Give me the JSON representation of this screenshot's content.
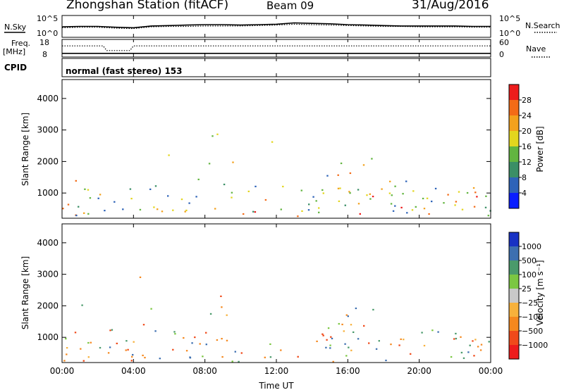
{
  "header": {
    "station": "Zhongshan Station (fitACF)",
    "beam": "Beam 09",
    "date": "31/Aug/2016"
  },
  "colors": {
    "frame": "#000000",
    "power_scale": [
      "#0a1eff",
      "#2e63b8",
      "#3b8f66",
      "#62b540",
      "#e3d61e",
      "#f3a11c",
      "#f36b17",
      "#ed1c1c"
    ],
    "velocity_scale": [
      "#ed1c1c",
      "#f04a1a",
      "#f5881e",
      "#f7b13b",
      "#c8c8c8",
      "#7bc742",
      "#4a9a6b",
      "#3d6fb0",
      "#1832c4"
    ]
  },
  "chart_data": [
    {
      "id": "noise",
      "type": "line",
      "left_label": "N.Sky",
      "right_label": "N.Search",
      "left_ticks": [
        "10^5",
        "10^0"
      ],
      "right_ticks": [
        "10^5",
        "10^0"
      ],
      "series": [
        {
          "name": "N.Sky",
          "style": "solid",
          "x": [
            0,
            1,
            2,
            3,
            4,
            5,
            6,
            7,
            8,
            9,
            10,
            11,
            12,
            13,
            14,
            15,
            16,
            17,
            18,
            19,
            20,
            21,
            22,
            23,
            24
          ],
          "y": [
            2.4,
            2.5,
            2.5,
            2.3,
            2.2,
            2.6,
            2.7,
            2.8,
            2.9,
            2.9,
            2.8,
            2.9,
            3.0,
            3.3,
            3.2,
            3.1,
            2.9,
            2.8,
            2.7,
            2.6,
            2.6,
            2.6,
            2.6,
            2.5,
            2.5
          ]
        },
        {
          "name": "N.Search",
          "style": "dotted",
          "x": [
            0,
            1,
            2,
            3,
            4,
            5,
            6,
            7,
            8,
            9,
            10,
            11,
            12,
            13,
            14,
            15,
            16,
            17,
            18,
            19,
            20,
            21,
            22,
            23,
            24
          ],
          "y": [
            2.2,
            2.3,
            2.3,
            2.1,
            2.0,
            2.4,
            2.5,
            2.5,
            2.6,
            2.6,
            2.6,
            2.7,
            2.8,
            3.0,
            2.9,
            2.8,
            2.7,
            2.6,
            2.5,
            2.5,
            2.4,
            2.4,
            2.4,
            2.3,
            2.3
          ]
        }
      ]
    },
    {
      "id": "freq",
      "type": "line",
      "left_label": "Freq.",
      "left_unit": "[MHz]",
      "right_label": "Nave",
      "left_ticks": [
        "18",
        "8"
      ],
      "right_ticks": [
        "60",
        "0"
      ],
      "series": [
        {
          "name": "Freq.",
          "style": "solid",
          "x": [
            0,
            2.3,
            2.5,
            3.8,
            4.0,
            24
          ],
          "y": [
            10.1,
            10.1,
            10.1,
            10.1,
            10.1,
            10.1
          ]
        },
        {
          "name": "Nave",
          "style": "dotted",
          "x": [
            0,
            2.3,
            2.5,
            3.8,
            4.0,
            24
          ],
          "y": [
            38,
            38,
            22,
            22,
            38,
            38
          ]
        }
      ]
    },
    {
      "id": "cpid",
      "label": "CPID",
      "text": "normal (fast stereo) 153"
    },
    {
      "id": "power",
      "type": "heatmap",
      "ylabel": "Slant Range [km]",
      "colorbar_label": "Power [dB]",
      "colorbar_ticks": [
        "28",
        "24",
        "20",
        "16",
        "12",
        "8",
        "4"
      ],
      "y_ticks": [
        "4000",
        "3000",
        "2000",
        "1000"
      ],
      "ylim": [
        200,
        4600
      ]
    },
    {
      "id": "velocity",
      "type": "heatmap",
      "ylabel": "Slant Range [km]",
      "colorbar_label": "Velocity [m s⁻¹]",
      "colorbar_ticks": [
        "1000",
        "500",
        "100",
        "25",
        "−25",
        "−100",
        "−500",
        "−1000"
      ],
      "y_ticks": [
        "4000",
        "3000",
        "2000",
        "1000"
      ],
      "ylim": [
        200,
        4600
      ]
    },
    {
      "id": "time_axis",
      "xlabel": "Time UT",
      "x_ticks": [
        "00:00",
        "04:00",
        "08:00",
        "12:00",
        "16:00",
        "20:00",
        "00:00"
      ],
      "xlim": [
        0,
        24
      ]
    }
  ]
}
